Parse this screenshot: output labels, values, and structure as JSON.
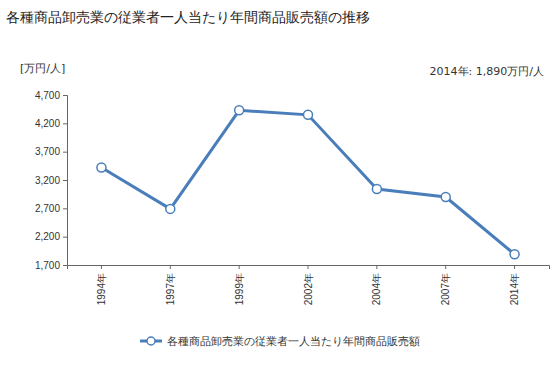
{
  "chart_data": {
    "type": "line",
    "title": "各種商品卸売業の従業者一人当たり年間商品販売額の推移",
    "y_label": "[万円/人]",
    "annotation": "2014年: 1,890万円/人",
    "categories": [
      "1994年",
      "1997年",
      "1999年",
      "2002年",
      "2004年",
      "2007年",
      "2014年"
    ],
    "series": [
      {
        "name": "各種商品卸売業の従業者一人当たり年間商品販売額",
        "color": "#4a7ebb",
        "marker": "circle",
        "values": [
          3420,
          2690,
          4430,
          4350,
          3040,
          2900,
          1890
        ]
      }
    ],
    "ylim": [
      1700,
      4700
    ],
    "yticks": [
      {
        "value": 1700,
        "label": "1,700"
      },
      {
        "value": 2200,
        "label": "2,200"
      },
      {
        "value": 2700,
        "label": "2,700"
      },
      {
        "value": 3200,
        "label": "3,200"
      },
      {
        "value": 3700,
        "label": "3,700"
      },
      {
        "value": 4200,
        "label": "4,200"
      },
      {
        "value": 4700,
        "label": "4,700"
      }
    ],
    "grid": false,
    "legend": "bottom"
  }
}
